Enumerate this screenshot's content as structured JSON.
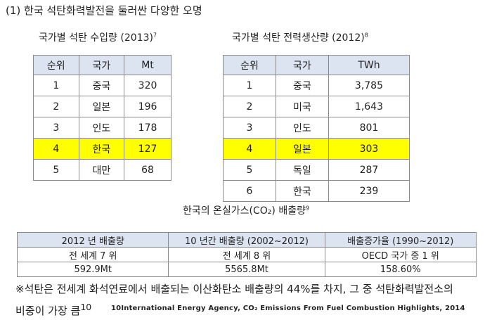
{
  "heading": "(1)  한국  석탄화력발전을 둘러싼  다양한  오명",
  "import_table": {
    "title": "국가별  석탄  수입량  (2013)",
    "title_ref": "7",
    "headers": [
      "순위",
      "국가",
      "Mt"
    ],
    "rows": [
      [
        "1",
        "중국",
        "320"
      ],
      [
        "2",
        "일본",
        "196"
      ],
      [
        "3",
        "인도",
        "178"
      ],
      [
        "4",
        "한국",
        "127"
      ],
      [
        "5",
        "대만",
        "68"
      ]
    ]
  },
  "power_table": {
    "title": "국가별  석탄  전력생산량  (2012)",
    "title_ref": "8",
    "headers": [
      "순위",
      "국가",
      "TWh"
    ],
    "rows": [
      [
        "1",
        "중국",
        "3,785"
      ],
      [
        "2",
        "미국",
        "1,643"
      ],
      [
        "3",
        "인도",
        "801"
      ],
      [
        "4",
        "일본",
        "303"
      ],
      [
        "5",
        "독일",
        "287"
      ],
      [
        "6",
        "한국",
        "239"
      ]
    ]
  },
  "emissions": {
    "caption": "한국의  온실가스(CO₂)  배출량",
    "caption_ref": "9",
    "headers": [
      "2012 년  배출량",
      "10 년간  배출량  (2002~2012)",
      "배출증가율  (1990~2012)"
    ],
    "rows": [
      [
        "전  세계  7 위",
        "전  세계  8 위",
        "OECD 국가  중  1 위"
      ],
      [
        "592.9Mt",
        "5565.8Mt",
        "158.60%"
      ]
    ]
  },
  "note_line1": "※석탄은  전세계  화석연료에서  배출되는  이산화탄소  배출량의  44%를  차지,  그  중  석탄화력발전소의",
  "note_line2": "비중이  가장  큼",
  "note_ref": "10",
  "footnote_ref": "10",
  "footnote": "International Energy Agency, CO₂ Emissions From Fuel Combustion Highlights, 2014",
  "highlight_color": "#ffff00",
  "header_bg": "#dbe4f0"
}
